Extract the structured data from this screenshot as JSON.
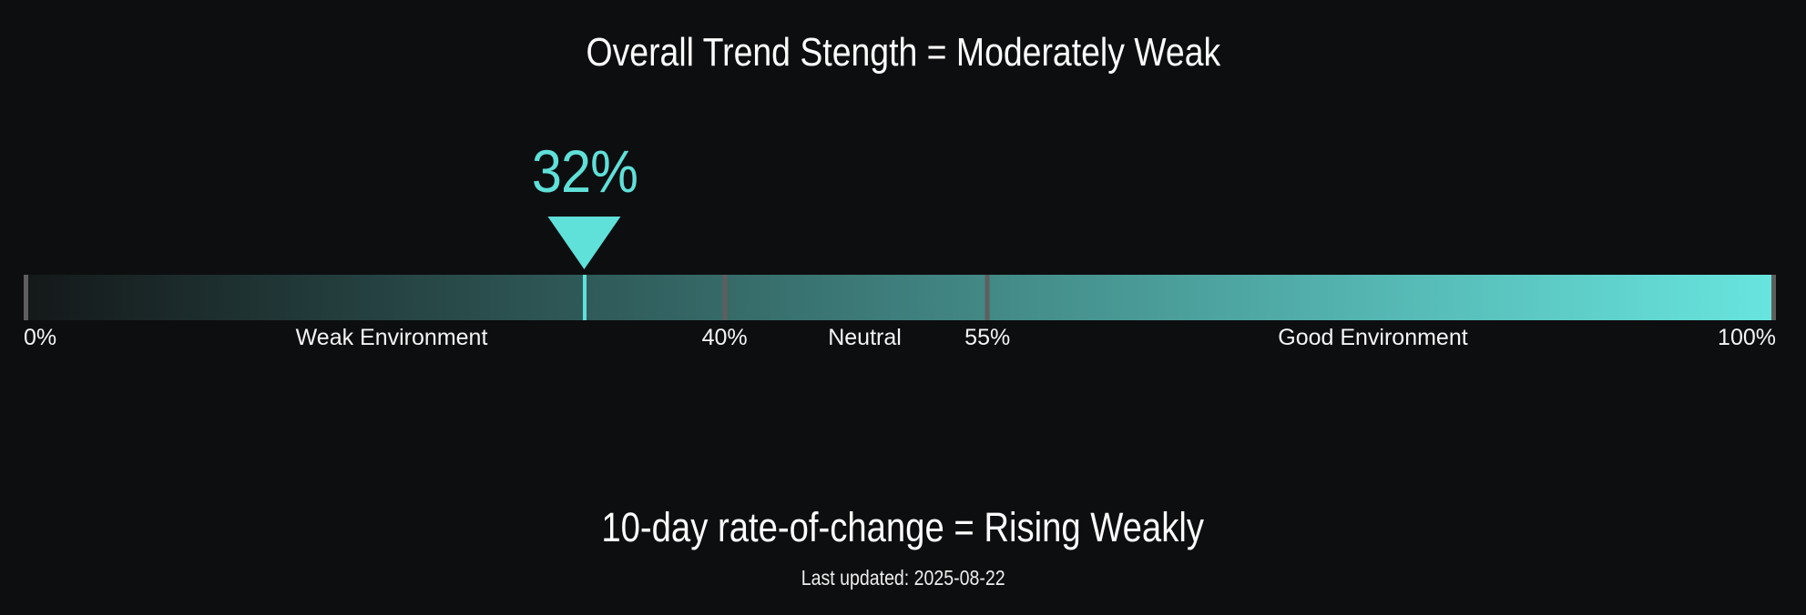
{
  "colors": {
    "background": "#0d0e10",
    "accent": "#5fe0d8",
    "heading_text": "#fcfcfc",
    "label_text": "#f5f5f5",
    "bar_gradient_start": "#141819",
    "bar_gradient_end": "#68e5df",
    "tick_gray": "#5e5e5e"
  },
  "gauge": {
    "title": "Overall Trend Stength = Moderately Weak",
    "value_percent": 32,
    "value_label": "32%",
    "boundary_ticks_percent": [
      0,
      40,
      55,
      100
    ],
    "axis_labels": [
      {
        "text": "0%",
        "percent": 0,
        "align": "left"
      },
      {
        "text": "Weak Environment",
        "percent": 21,
        "align": "center"
      },
      {
        "text": "40%",
        "percent": 40,
        "align": "center"
      },
      {
        "text": "Neutral",
        "percent": 48,
        "align": "center"
      },
      {
        "text": "55%",
        "percent": 55,
        "align": "center"
      },
      {
        "text": "Good Environment",
        "percent": 77,
        "align": "center"
      },
      {
        "text": "100%",
        "percent": 100,
        "align": "right"
      }
    ]
  },
  "footer": {
    "subtitle": "10-day rate-of-change = Rising Weakly",
    "last_updated": "Last updated: 2025-08-22"
  },
  "chart_data": {
    "type": "gauge",
    "title": "Overall Trend Stength = Moderately Weak",
    "value": 32,
    "unit": "%",
    "range": [
      0,
      100
    ],
    "zones": [
      {
        "label": "Weak Environment",
        "from": 0,
        "to": 40
      },
      {
        "label": "Neutral",
        "from": 40,
        "to": 55
      },
      {
        "label": "Good Environment",
        "from": 55,
        "to": 100
      }
    ],
    "tick_labels": [
      "0%",
      "40%",
      "55%",
      "100%"
    ],
    "pointer_color": "#5fe0d8",
    "bar_gradient": [
      "#141819",
      "#68e5df"
    ],
    "subtitle": "10-day rate-of-change = Rising Weakly",
    "last_updated_text": "Last updated: 2025-08-22"
  }
}
